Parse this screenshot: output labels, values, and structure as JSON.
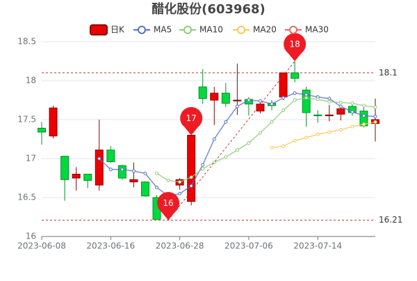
{
  "chart_data": {
    "type": "candlestick",
    "title": "醋化股份(603968)",
    "categories": [
      "2023-06-08",
      null,
      null,
      null,
      null,
      null,
      "2023-06-16",
      null,
      null,
      null,
      null,
      null,
      "2023-06-28",
      null,
      null,
      null,
      null,
      null,
      "2023-07-06",
      null,
      null,
      null,
      null,
      null,
      "2023-07-14",
      null,
      null,
      null,
      null,
      null
    ],
    "series": [
      {
        "name": "日K",
        "type": "candlestick",
        "up_color": "#ec0000",
        "down_color": "#00da3c",
        "up_border": "#8a0000",
        "down_border": "#008f28",
        "open": [
          17.39,
          17.29,
          17.03,
          16.75,
          16.8,
          16.66,
          17.11,
          16.91,
          16.7,
          16.7,
          16.5,
          16.45,
          16.66,
          16.45,
          17.92,
          17.75,
          17.84,
          17.74,
          17.76,
          17.61,
          17.71,
          17.79,
          18.1,
          17.88,
          17.56,
          17.55,
          17.57,
          17.67,
          17.61,
          17.45
        ],
        "close": [
          17.34,
          17.65,
          16.73,
          16.8,
          16.72,
          17.11,
          16.96,
          16.75,
          16.73,
          16.52,
          16.22,
          16.3,
          16.73,
          17.3,
          17.77,
          17.84,
          17.71,
          17.75,
          17.7,
          17.7,
          17.68,
          18.1,
          18.03,
          17.59,
          17.55,
          17.56,
          17.64,
          17.59,
          17.42,
          17.5
        ],
        "high": [
          17.47,
          17.68,
          17.03,
          16.89,
          16.8,
          17.5,
          17.16,
          16.92,
          16.95,
          16.71,
          16.53,
          16.5,
          16.75,
          17.3,
          18.15,
          17.92,
          17.97,
          18.22,
          17.79,
          17.76,
          17.75,
          18.1,
          18.25,
          17.92,
          17.62,
          17.69,
          17.66,
          17.7,
          17.68,
          17.77
        ],
        "low": [
          17.18,
          17.26,
          16.46,
          16.59,
          16.62,
          16.59,
          16.95,
          16.73,
          16.63,
          16.51,
          16.22,
          16.21,
          16.6,
          16.4,
          17.7,
          17.43,
          17.66,
          17.56,
          17.55,
          17.58,
          17.62,
          17.75,
          17.98,
          17.41,
          17.46,
          17.48,
          17.49,
          17.55,
          17.4,
          17.22
        ]
      },
      {
        "name": "MA5",
        "type": "line",
        "color": "#5470c6",
        "values": [
          null,
          null,
          null,
          null,
          null,
          17.0,
          16.86,
          16.86,
          16.84,
          16.81,
          16.63,
          16.52,
          16.55,
          16.65,
          16.92,
          17.25,
          17.47,
          17.67,
          17.75,
          17.74,
          17.7,
          17.78,
          17.84,
          17.82,
          17.79,
          17.77,
          17.67,
          17.6,
          17.55,
          17.54
        ]
      },
      {
        "name": "MA10",
        "type": "line",
        "color": "#91cc75",
        "values": [
          null,
          null,
          null,
          null,
          null,
          null,
          null,
          null,
          null,
          null,
          16.81,
          16.72,
          16.7,
          16.76,
          16.87,
          16.95,
          17.02,
          17.11,
          17.2,
          17.33,
          17.47,
          17.62,
          17.75,
          17.78,
          17.76,
          17.73,
          17.72,
          17.71,
          17.68,
          17.66
        ]
      },
      {
        "name": "MA20",
        "type": "line",
        "color": "#fac858",
        "values": [
          null,
          null,
          null,
          null,
          null,
          null,
          null,
          null,
          null,
          null,
          null,
          null,
          null,
          null,
          null,
          null,
          null,
          null,
          null,
          null,
          17.14,
          17.16,
          17.23,
          17.27,
          17.31,
          17.34,
          17.37,
          17.41,
          17.44,
          17.47
        ]
      },
      {
        "name": "MA30",
        "type": "line",
        "color": "#ee6666",
        "values": [
          null,
          null,
          null,
          null,
          null,
          null,
          null,
          null,
          null,
          null,
          null,
          null,
          null,
          null,
          null,
          null,
          null,
          null,
          null,
          null,
          null,
          null,
          null,
          null,
          null,
          null,
          null,
          null,
          null,
          null
        ]
      }
    ],
    "ylim": [
      16,
      18.5
    ],
    "yticks": [
      16,
      16.5,
      17,
      17.5,
      18,
      18.5
    ],
    "grid": true,
    "mark_lines": {
      "values": [
        18.1,
        16.21
      ],
      "color": "#c23531"
    },
    "markers": {
      "indices": [
        22,
        13,
        11
      ],
      "values": [
        18.25,
        17.3,
        16.21
      ],
      "value_labels": [
        "18",
        "17",
        "16"
      ],
      "color": "#ee1b24"
    }
  }
}
